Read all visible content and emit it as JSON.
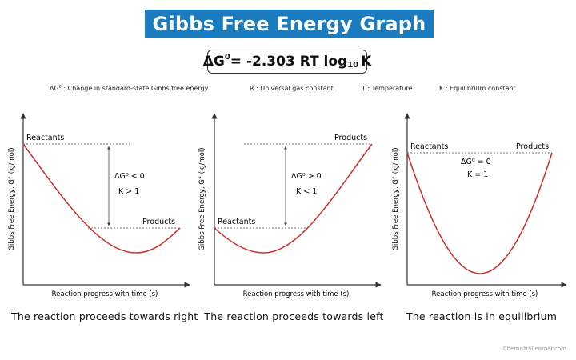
{
  "title": "Gibbs Free Energy Graph",
  "formula": {
    "lhs": "ΔG",
    "lhs_sup": "0",
    "rhs_main": " = -2.303 RT log",
    "rhs_sub": "10",
    "rhs_end": " K"
  },
  "legend": {
    "dg_symbol": "ΔG",
    "dg_sup": "0",
    "dg_desc": " : Change in standard-state Gibbs free energy",
    "r": "R : Universal gas constant",
    "t": "T : Temperature",
    "k": "K : Equilibrium constant"
  },
  "y_axis_label": "Gibbs Free Energy, G° (kJ/mol)",
  "x_axis_label": "Reaction progress with time (s)",
  "panels": [
    {
      "reactants_label": "Reactants",
      "products_label": "Products",
      "dg_text": "ΔG⁰ < 0",
      "k_text": "K > 1",
      "caption": "The reaction proceeds towards right"
    },
    {
      "reactants_label": "Reactants",
      "products_label": "Products",
      "dg_text": "ΔG⁰ > 0",
      "k_text": "K < 1",
      "caption": "The reaction proceeds towards left"
    },
    {
      "reactants_label": "Reactants",
      "products_label": "Products",
      "dg_text": "ΔG⁰ = 0",
      "k_text": "K = 1",
      "caption": "The reaction is in equilibrium"
    }
  ],
  "watermark": "ChemistryLearner.com",
  "colors": {
    "banner": "#1a7bbf",
    "curve": "#d62b2b",
    "axis": "#333333"
  }
}
